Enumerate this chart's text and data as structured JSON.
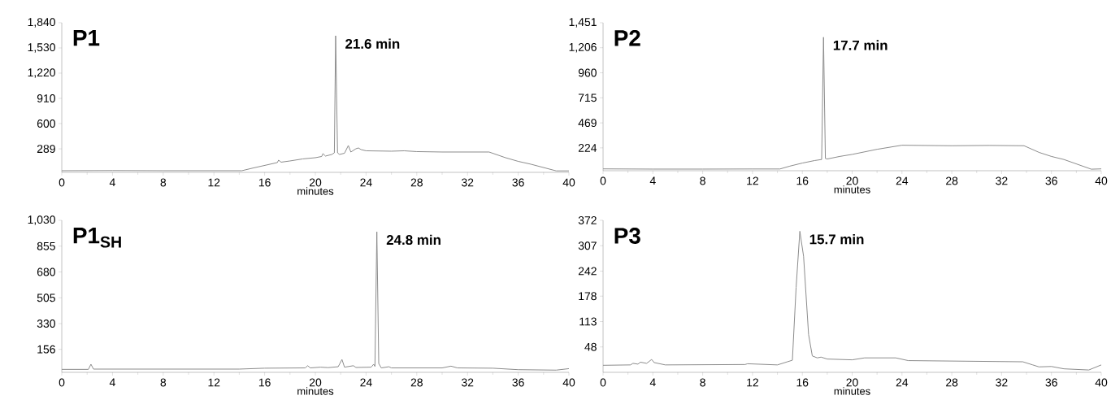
{
  "chart_data": [
    {
      "type": "line",
      "title": "P1",
      "xlabel": "minutes",
      "color": "#8c8c8c",
      "x": [
        0,
        4,
        8,
        12,
        14.2,
        15,
        16,
        17,
        17.1,
        17.3,
        18,
        19,
        20,
        20.5,
        20.6,
        20.8,
        21.3,
        21.5,
        21.6,
        21.75,
        21.9,
        22.3,
        22.6,
        22.8,
        23.2,
        23.4,
        23.6,
        24,
        26,
        27,
        28,
        30,
        33.7,
        35,
        36,
        37,
        39,
        40
      ],
      "values": [
        20,
        22,
        20,
        20,
        20,
        50,
        85,
        120,
        150,
        125,
        140,
        165,
        180,
        195,
        230,
        200,
        220,
        240,
        1680,
        240,
        220,
        235,
        330,
        250,
        290,
        300,
        280,
        265,
        260,
        265,
        255,
        250,
        250,
        180,
        135,
        100,
        18,
        18
      ],
      "xlim": [
        0,
        40
      ],
      "ylim": [
        0,
        1840
      ],
      "xticks": [
        0,
        4,
        8,
        12,
        16,
        20,
        24,
        28,
        32,
        36,
        40
      ],
      "yticks": [
        289,
        600,
        910,
        {
          "value": 1220,
          "label": "1,220"
        },
        {
          "value": 1530,
          "label": "1,530"
        },
        {
          "value": 1840,
          "label": "1,840"
        }
      ],
      "annotations": [
        {
          "text": "21.6 min",
          "x": 21.6,
          "y": 1680
        }
      ]
    },
    {
      "type": "line",
      "title": "P2",
      "xlabel": "minutes",
      "color": "#8c8c8c",
      "x": [
        0,
        4,
        8,
        12,
        14.2,
        15,
        16,
        17,
        17.55,
        17.7,
        17.85,
        18,
        19,
        20,
        22,
        24,
        28,
        31,
        33.8,
        35,
        36,
        37,
        39.2,
        40
      ],
      "values": [
        18,
        16,
        16,
        17,
        17,
        45,
        75,
        100,
        110,
        1309,
        120,
        115,
        140,
        160,
        210,
        250,
        245,
        248,
        245,
        180,
        140,
        110,
        15,
        18
      ],
      "xlim": [
        0,
        40
      ],
      "ylim": [
        0,
        1451
      ],
      "xticks": [
        0,
        4,
        8,
        12,
        16,
        20,
        24,
        28,
        32,
        36,
        40
      ],
      "yticks": [
        224,
        469,
        715,
        960,
        {
          "value": 1206,
          "label": "1,206"
        },
        {
          "value": 1451,
          "label": "1,451"
        }
      ],
      "annotations": [
        {
          "text": "17.7 min",
          "x": 17.7,
          "y": 1309
        }
      ]
    },
    {
      "type": "line",
      "title": "P1$_{SH}$",
      "xlabel": "minutes",
      "color": "#8c8c8c",
      "x": [
        0,
        2.1,
        2.3,
        2.5,
        8,
        14,
        16,
        19.2,
        19.4,
        19.6,
        20.4,
        21,
        21.8,
        22.1,
        22.3,
        23,
        23.2,
        24.4,
        24.6,
        24.7,
        24.85,
        25.0,
        25.2,
        25.8,
        26,
        30,
        30.7,
        31.2,
        34,
        36,
        39,
        40
      ],
      "values": [
        20,
        20,
        55,
        22,
        22,
        22,
        28,
        30,
        45,
        30,
        35,
        32,
        38,
        87,
        35,
        45,
        33,
        35,
        55,
        40,
        952,
        60,
        30,
        38,
        30,
        30,
        42,
        30,
        28,
        18,
        15,
        25
      ],
      "xlim": [
        0,
        40
      ],
      "ylim": [
        0,
        1030
      ],
      "xticks": [
        0,
        4,
        8,
        12,
        16,
        20,
        24,
        28,
        32,
        36,
        40
      ],
      "yticks": [
        156,
        330,
        505,
        680,
        855,
        {
          "value": 1030,
          "label": "1,030"
        }
      ],
      "annotations": [
        {
          "text": "24.8 min",
          "x": 24.85,
          "y": 952
        }
      ]
    },
    {
      "type": "line",
      "title": "P3",
      "xlabel": "minutes",
      "color": "#8c8c8c",
      "x": [
        0,
        2.2,
        2.4,
        2.8,
        3,
        3.5,
        3.9,
        4.1,
        5,
        11.4,
        11.6,
        14,
        14.8,
        15.2,
        15.5,
        15.8,
        16.1,
        16.5,
        16.8,
        17.2,
        17.5,
        18,
        20,
        21,
        23.5,
        24.5,
        33.7,
        34.5,
        35,
        36,
        37,
        39,
        40
      ],
      "values": [
        1,
        2,
        6,
        4,
        9,
        6,
        16,
        8,
        2,
        3,
        5,
        2,
        10,
        14,
        200,
        344,
        280,
        80,
        25,
        20,
        22,
        17,
        15,
        20,
        20,
        13,
        10,
        2,
        -3,
        -2,
        -8,
        -11,
        2
      ],
      "xlim": [
        0,
        40
      ],
      "ylim": [
        -17,
        372
      ],
      "xticks": [
        0,
        4,
        8,
        12,
        16,
        20,
        24,
        28,
        32,
        36,
        40
      ],
      "yticks": [
        48,
        113,
        178,
        242,
        307,
        372
      ],
      "annotations": [
        {
          "text": "15.7 min",
          "x": 15.8,
          "y": 344
        }
      ]
    }
  ]
}
